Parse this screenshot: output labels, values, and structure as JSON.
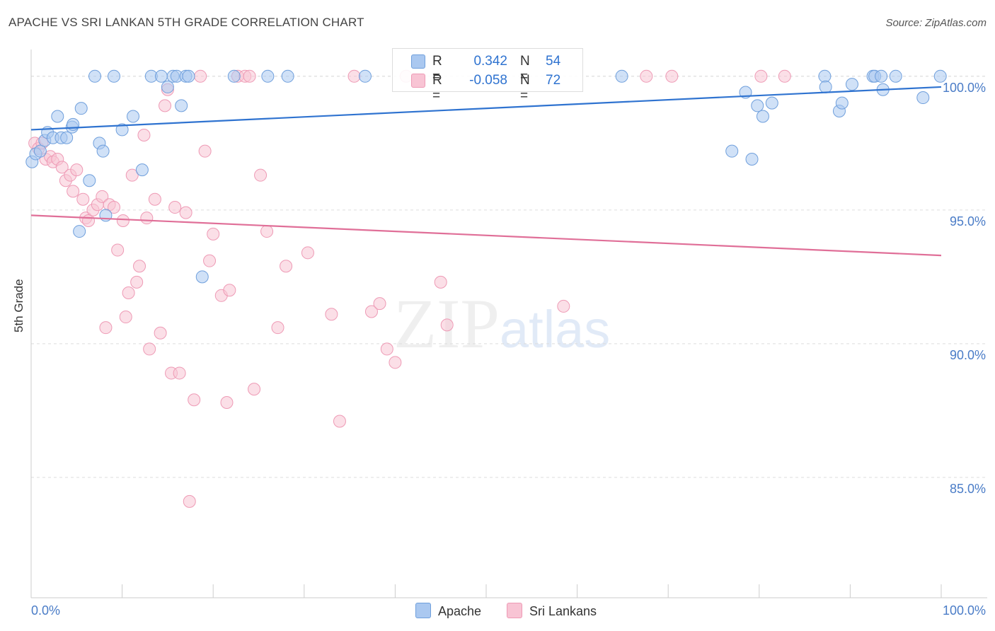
{
  "header": {
    "title": "APACHE VS SRI LANKAN 5TH GRADE CORRELATION CHART",
    "source": "Source: ZipAtlas.com"
  },
  "legend": {
    "apache": {
      "r_label": "R =",
      "r_value": "0.342",
      "n_label": "N =",
      "n_value": "54"
    },
    "sri": {
      "r_label": "R =",
      "r_value": "-0.058",
      "n_label": "N =",
      "n_value": "72"
    }
  },
  "bottom_legend": {
    "apache": "Apache",
    "sri": "Sri Lankans"
  },
  "watermark": {
    "zip": "ZIP",
    "atlas": "atlas"
  },
  "colors": {
    "apache_fill": "#aac8f0",
    "apache_stroke": "#6f9fdc",
    "apache_line": "#2f73d0",
    "sri_fill": "#f8c4d4",
    "sri_stroke": "#ee9ab5",
    "sri_line": "#e06f98",
    "tick_label": "#4a7cc7"
  },
  "chart_data": {
    "type": "scatter",
    "title": "APACHE VS SRI LANKAN 5TH GRADE CORRELATION CHART",
    "xlabel": "",
    "ylabel": "5th Grade",
    "xlim": [
      0,
      100
    ],
    "ylim": [
      80.5,
      101.0
    ],
    "x_tick_labels": [
      "0.0%",
      "100.0%"
    ],
    "y_ticks": [
      85,
      90,
      95,
      100
    ],
    "y_tick_labels": [
      "85.0%",
      "90.0%",
      "95.0%",
      "100.0%"
    ],
    "grid": true,
    "legend_position": "top-center",
    "series": [
      {
        "name": "Apache",
        "trend": [
          [
            0,
            98.0
          ],
          [
            100,
            99.6
          ]
        ],
        "points": [
          [
            0.1,
            96.8
          ],
          [
            0.5,
            97.1
          ],
          [
            1.0,
            97.2
          ],
          [
            1.5,
            97.6
          ],
          [
            1.8,
            97.9
          ],
          [
            2.4,
            97.7
          ],
          [
            2.9,
            98.5
          ],
          [
            3.3,
            97.7
          ],
          [
            3.9,
            97.7
          ],
          [
            4.5,
            98.1
          ],
          [
            4.6,
            98.2
          ],
          [
            5.5,
            98.8
          ],
          [
            5.3,
            94.2
          ],
          [
            6.4,
            96.1
          ],
          [
            7.0,
            100.0
          ],
          [
            7.5,
            97.5
          ],
          [
            7.9,
            97.2
          ],
          [
            8.2,
            94.8
          ],
          [
            9.1,
            100.0
          ],
          [
            10.0,
            98.0
          ],
          [
            11.2,
            98.5
          ],
          [
            12.2,
            96.5
          ],
          [
            13.2,
            100.0
          ],
          [
            14.3,
            100.0
          ],
          [
            15.0,
            99.6
          ],
          [
            15.6,
            100.0
          ],
          [
            16.0,
            100.0
          ],
          [
            16.5,
            98.9
          ],
          [
            17.0,
            100.0
          ],
          [
            17.3,
            100.0
          ],
          [
            18.8,
            92.5
          ],
          [
            22.3,
            100.0
          ],
          [
            26.0,
            100.0
          ],
          [
            28.2,
            100.0
          ],
          [
            36.7,
            100.0
          ],
          [
            64.9,
            100.0
          ],
          [
            77.0,
            97.2
          ],
          [
            78.5,
            99.4
          ],
          [
            79.2,
            96.9
          ],
          [
            79.8,
            98.9
          ],
          [
            80.4,
            98.5
          ],
          [
            81.4,
            99.0
          ],
          [
            87.2,
            100.0
          ],
          [
            87.3,
            99.6
          ],
          [
            88.8,
            98.7
          ],
          [
            89.1,
            99.0
          ],
          [
            90.2,
            99.7
          ],
          [
            92.5,
            100.0
          ],
          [
            92.7,
            100.0
          ],
          [
            93.4,
            100.0
          ],
          [
            93.6,
            99.5
          ],
          [
            95.0,
            100.0
          ],
          [
            98.0,
            99.2
          ],
          [
            99.9,
            100.0
          ]
        ]
      },
      {
        "name": "Sri Lankans",
        "trend": [
          [
            0,
            94.8
          ],
          [
            100,
            93.3
          ]
        ],
        "points": [
          [
            0.4,
            97.5
          ],
          [
            0.8,
            97.3
          ],
          [
            1.2,
            97.5
          ],
          [
            1.6,
            96.9
          ],
          [
            2.1,
            97.0
          ],
          [
            2.4,
            96.8
          ],
          [
            2.9,
            96.9
          ],
          [
            3.4,
            96.6
          ],
          [
            3.8,
            96.1
          ],
          [
            4.3,
            96.3
          ],
          [
            4.6,
            95.7
          ],
          [
            5.0,
            96.5
          ],
          [
            5.7,
            95.4
          ],
          [
            6.0,
            94.7
          ],
          [
            6.3,
            94.6
          ],
          [
            6.8,
            95.0
          ],
          [
            7.3,
            95.2
          ],
          [
            7.8,
            95.5
          ],
          [
            8.2,
            90.6
          ],
          [
            8.6,
            95.2
          ],
          [
            9.1,
            95.1
          ],
          [
            9.5,
            93.5
          ],
          [
            10.1,
            94.6
          ],
          [
            10.4,
            91.0
          ],
          [
            10.7,
            91.9
          ],
          [
            11.1,
            96.3
          ],
          [
            11.6,
            92.3
          ],
          [
            11.9,
            92.9
          ],
          [
            12.4,
            97.8
          ],
          [
            12.7,
            94.7
          ],
          [
            13.0,
            89.8
          ],
          [
            13.6,
            95.4
          ],
          [
            14.2,
            90.4
          ],
          [
            14.7,
            98.9
          ],
          [
            15.0,
            99.5
          ],
          [
            15.4,
            88.9
          ],
          [
            15.8,
            95.1
          ],
          [
            16.3,
            88.9
          ],
          [
            17.0,
            94.9
          ],
          [
            17.4,
            84.1
          ],
          [
            17.9,
            87.9
          ],
          [
            18.6,
            100.0
          ],
          [
            19.1,
            97.2
          ],
          [
            19.6,
            93.1
          ],
          [
            20.0,
            94.1
          ],
          [
            20.9,
            91.8
          ],
          [
            21.5,
            87.8
          ],
          [
            21.8,
            92.0
          ],
          [
            22.7,
            100.0
          ],
          [
            23.5,
            100.0
          ],
          [
            24.0,
            100.0
          ],
          [
            24.5,
            88.3
          ],
          [
            25.2,
            96.3
          ],
          [
            25.9,
            94.2
          ],
          [
            27.1,
            90.6
          ],
          [
            28.0,
            92.9
          ],
          [
            30.4,
            93.4
          ],
          [
            33.0,
            91.1
          ],
          [
            33.9,
            87.1
          ],
          [
            35.5,
            100.0
          ],
          [
            37.4,
            91.2
          ],
          [
            38.3,
            91.5
          ],
          [
            39.1,
            89.8
          ],
          [
            40.0,
            89.3
          ],
          [
            41.2,
            100.0
          ],
          [
            45.0,
            92.3
          ],
          [
            45.7,
            90.7
          ],
          [
            67.6,
            100.0
          ],
          [
            70.4,
            100.0
          ],
          [
            80.2,
            100.0
          ],
          [
            82.8,
            100.0
          ],
          [
            58.5,
            91.4
          ]
        ]
      }
    ]
  }
}
